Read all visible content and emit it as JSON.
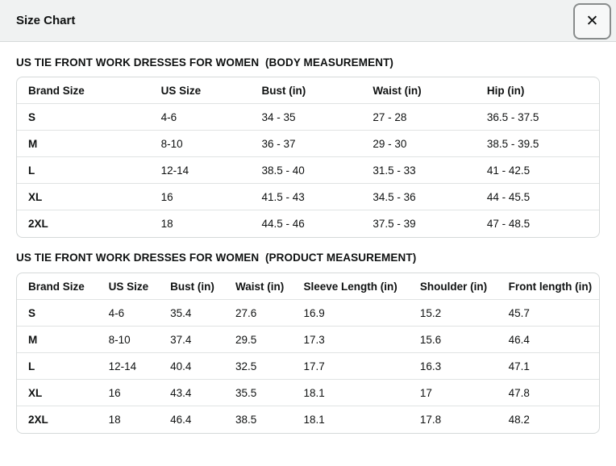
{
  "modal": {
    "title": "Size Chart",
    "close_icon": "✕"
  },
  "sections": {
    "body": {
      "title": "US TIE FRONT WORK DRESSES FOR WOMEN  (BODY MEASUREMENT)"
    },
    "product": {
      "title": "US TIE FRONT WORK DRESSES FOR WOMEN  (PRODUCT MEASUREMENT)"
    }
  },
  "tables": {
    "body": {
      "columns": [
        "Brand Size",
        "US Size",
        "Bust (in)",
        "Waist (in)",
        "Hip (in)"
      ],
      "rows": [
        [
          "S",
          "4-6",
          "34 - 35",
          "27 - 28",
          "36.5 - 37.5"
        ],
        [
          "M",
          "8-10",
          "36 - 37",
          "29 - 30",
          "38.5 - 39.5"
        ],
        [
          "L",
          "12-14",
          "38.5 - 40",
          "31.5 - 33",
          "41 - 42.5"
        ],
        [
          "XL",
          "16",
          "41.5 - 43",
          "34.5 - 36",
          "44 - 45.5"
        ],
        [
          "2XL",
          "18",
          "44.5 - 46",
          "37.5 - 39",
          "47 - 48.5"
        ]
      ]
    },
    "product": {
      "columns": [
        "Brand Size",
        "US Size",
        "Bust (in)",
        "Waist (in)",
        "Sleeve Length (in)",
        "Shoulder (in)",
        "Front length (in)"
      ],
      "rows": [
        [
          "S",
          "4-6",
          "35.4",
          "27.6",
          "16.9",
          "15.2",
          "45.7"
        ],
        [
          "M",
          "8-10",
          "37.4",
          "29.5",
          "17.3",
          "15.6",
          "46.4"
        ],
        [
          "L",
          "12-14",
          "40.4",
          "32.5",
          "17.7",
          "16.3",
          "47.1"
        ],
        [
          "XL",
          "16",
          "43.4",
          "35.5",
          "18.1",
          "17",
          "47.8"
        ],
        [
          "2XL",
          "18",
          "46.4",
          "38.5",
          "18.1",
          "17.8",
          "48.2"
        ]
      ]
    }
  },
  "colors": {
    "text": "#0f1111",
    "header_bar_bg": "#f0f2f2",
    "table_border": "#d5d9d9",
    "row_divider": "#e0e3e3",
    "close_button_border": "#888c8c"
  }
}
